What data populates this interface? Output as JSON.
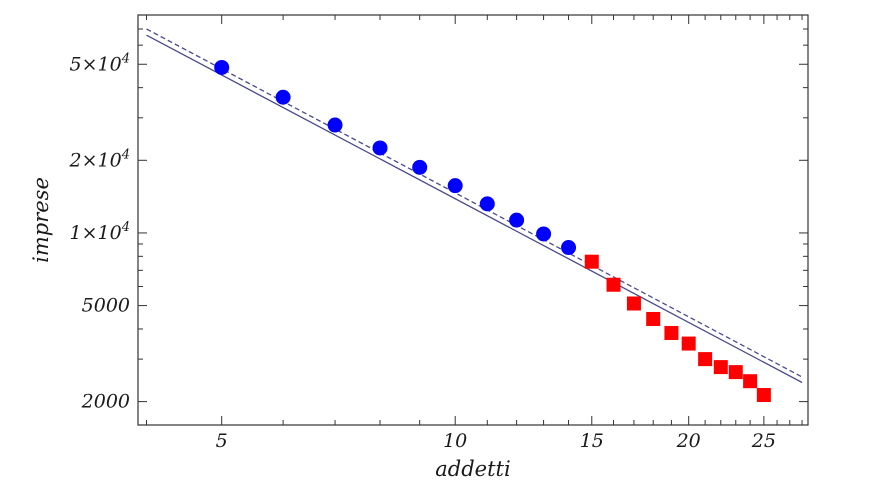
{
  "chart_data": {
    "type": "scatter",
    "xscale": "log",
    "yscale": "log",
    "xlabel": "addetti",
    "ylabel": "imprese",
    "xlim": [
      3.9,
      28.5
    ],
    "ylim": [
      1600,
      80000
    ],
    "grid": false,
    "x_ticks": [
      {
        "value": 5,
        "label": "5"
      },
      {
        "value": 10,
        "label": "10"
      },
      {
        "value": 15,
        "label": "15"
      },
      {
        "value": 20,
        "label": "20"
      },
      {
        "value": 25,
        "label": "25"
      }
    ],
    "y_ticks": [
      {
        "value": 2000,
        "label": "2000"
      },
      {
        "value": 5000,
        "label": "5000"
      },
      {
        "value": 10000,
        "label": "1×10^4"
      },
      {
        "value": 20000,
        "label": "2×10^4"
      },
      {
        "value": 50000,
        "label": "5×10^4"
      }
    ],
    "series": [
      {
        "marker": "circle",
        "color": "#0000ff",
        "x": [
          5,
          6,
          7,
          8,
          9,
          10,
          11,
          12,
          13,
          14
        ],
        "y": [
          48500,
          36500,
          28000,
          22500,
          18700,
          15700,
          13200,
          11300,
          9900,
          8700
        ]
      },
      {
        "marker": "square",
        "color": "#ff0000",
        "x": [
          15,
          16,
          17,
          18,
          19,
          20,
          21,
          22,
          23,
          24,
          25
        ],
        "y": [
          7600,
          6100,
          5100,
          4400,
          3850,
          3480,
          3000,
          2780,
          2650,
          2430,
          2130
        ]
      },
      {
        "marker": "line",
        "style": "solid",
        "color": "#4a4a8c",
        "x": [
          4,
          28
        ],
        "y": [
          66000,
          2400
        ]
      },
      {
        "marker": "line",
        "style": "dashed",
        "color": "#4a4a8c",
        "x": [
          4,
          28
        ],
        "y": [
          70000,
          2530
        ]
      }
    ]
  }
}
